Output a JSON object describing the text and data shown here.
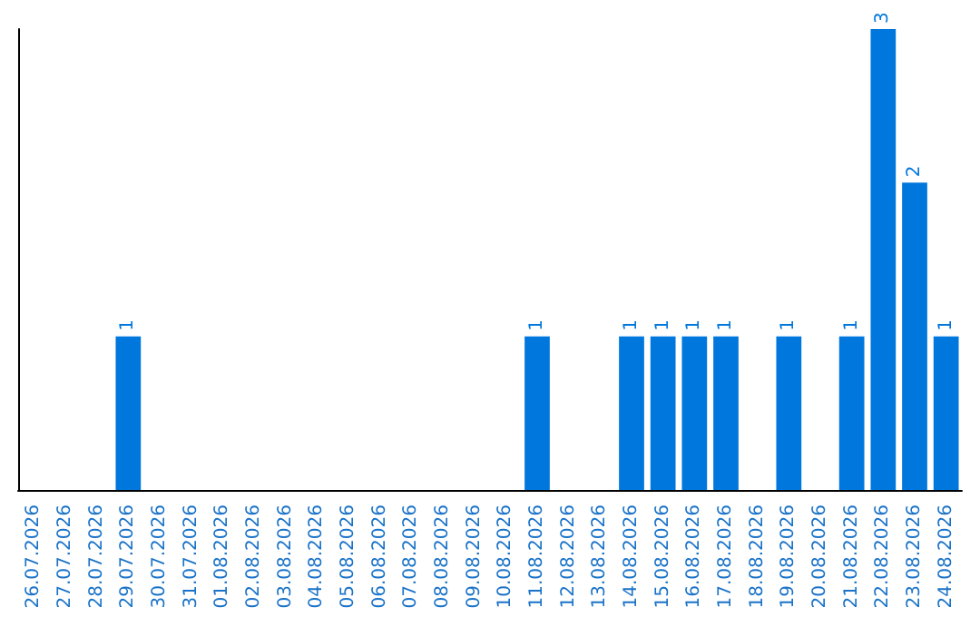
{
  "chart_data": {
    "type": "bar",
    "categories": [
      "26.07.2026",
      "27.07.2026",
      "28.07.2026",
      "29.07.2026",
      "30.07.2026",
      "31.07.2026",
      "01.08.2026",
      "02.08.2026",
      "03.08.2026",
      "04.08.2026",
      "05.08.2026",
      "06.08.2026",
      "07.08.2026",
      "08.08.2026",
      "09.08.2026",
      "10.08.2026",
      "11.08.2026",
      "12.08.2026",
      "13.08.2026",
      "14.08.2026",
      "15.08.2026",
      "16.08.2026",
      "17.08.2026",
      "18.08.2026",
      "19.08.2026",
      "20.08.2026",
      "21.08.2026",
      "22.08.2026",
      "23.08.2026",
      "24.08.2026"
    ],
    "values": [
      0,
      0,
      0,
      1,
      0,
      0,
      0,
      0,
      0,
      0,
      0,
      0,
      0,
      0,
      0,
      0,
      1,
      0,
      0,
      1,
      1,
      1,
      1,
      0,
      1,
      0,
      1,
      3,
      2,
      1
    ],
    "value_labels": [
      null,
      null,
      null,
      "1",
      null,
      null,
      null,
      null,
      null,
      null,
      null,
      null,
      null,
      null,
      null,
      null,
      "1",
      null,
      null,
      "1",
      "1",
      "1",
      "1",
      null,
      "1",
      null,
      "1",
      "3",
      "2",
      "1"
    ],
    "color": "#0077dd",
    "grid": false,
    "tick_labels": "x"
  }
}
